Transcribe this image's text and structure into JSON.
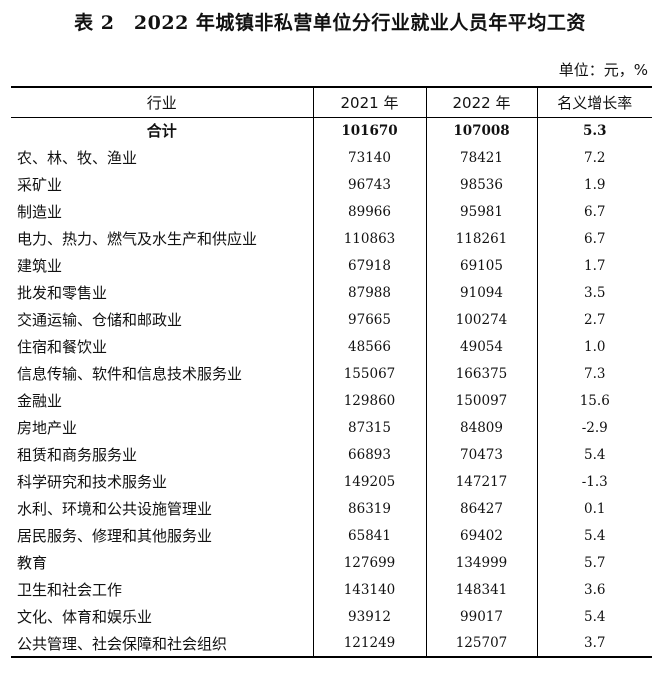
{
  "title": "表 2　2022 年城镇非私营单位分行业就业人员年平均工资",
  "unit": "单位：元，%",
  "headers": [
    "行业",
    "2021 年",
    "2022 年",
    "名义增长率"
  ],
  "rows": [
    {
      "name": "合计",
      "y2021": "101670",
      "y2022": "107008",
      "growth": "5.3"
    },
    {
      "name": "农、林、牧、渔业",
      "y2021": "73140",
      "y2022": "78421",
      "growth": "7.2"
    },
    {
      "name": "采矿业",
      "y2021": "96743",
      "y2022": "98536",
      "growth": "1.9"
    },
    {
      "name": "制造业",
      "y2021": "89966",
      "y2022": "95981",
      "growth": "6.7"
    },
    {
      "name": "电力、热力、燃气及水生产和供应业",
      "y2021": "110863",
      "y2022": "118261",
      "growth": "6.7"
    },
    {
      "name": "建筑业",
      "y2021": "67918",
      "y2022": "69105",
      "growth": "1.7"
    },
    {
      "name": "批发和零售业",
      "y2021": "87988",
      "y2022": "91094",
      "growth": "3.5"
    },
    {
      "name": "交通运输、仓储和邮政业",
      "y2021": "97665",
      "y2022": "100274",
      "growth": "2.7"
    },
    {
      "name": "住宿和餐饮业",
      "y2021": "48566",
      "y2022": "49054",
      "growth": "1.0"
    },
    {
      "name": "信息传输、软件和信息技术服务业",
      "y2021": "155067",
      "y2022": "166375",
      "growth": "7.3"
    },
    {
      "name": "金融业",
      "y2021": "129860",
      "y2022": "150097",
      "growth": "15.6"
    },
    {
      "name": "房地产业",
      "y2021": "87315",
      "y2022": "84809",
      "growth": "-2.9"
    },
    {
      "name": "租赁和商务服务业",
      "y2021": "66893",
      "y2022": "70473",
      "growth": "5.4"
    },
    {
      "name": "科学研究和技术服务业",
      "y2021": "149205",
      "y2022": "147217",
      "growth": "-1.3"
    },
    {
      "name": "水利、环境和公共设施管理业",
      "y2021": "86319",
      "y2022": "86427",
      "growth": "0.1"
    },
    {
      "name": "居民服务、修理和其他服务业",
      "y2021": "65841",
      "y2022": "69402",
      "growth": "5.4"
    },
    {
      "name": "教育",
      "y2021": "127699",
      "y2022": "134999",
      "growth": "5.7"
    },
    {
      "name": "卫生和社会工作",
      "y2021": "143140",
      "y2022": "148341",
      "growth": "3.6"
    },
    {
      "name": "文化、体育和娱乐业",
      "y2021": "93912",
      "y2022": "99017",
      "growth": "5.4"
    },
    {
      "name": "公共管理、社会保障和社会组织",
      "y2021": "121249",
      "y2022": "125707",
      "growth": "3.7"
    }
  ]
}
